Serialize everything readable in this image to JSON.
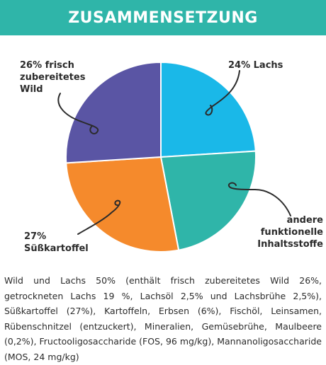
{
  "header": {
    "title": "ZUSAMMENSETZUNG"
  },
  "chart_data": {
    "type": "pie",
    "title": "",
    "slices": [
      {
        "label": "24% Lachs",
        "value": 24,
        "color": "#1ab8e8"
      },
      {
        "label": "andere funktionelle Inhaltsstoffe",
        "value": 23,
        "color": "#2fb5a9"
      },
      {
        "label": "27% Süßkartoffel",
        "value": 27,
        "color": "#f58a2c"
      },
      {
        "label": "26% frisch zubereitetes Wild",
        "value": 26,
        "color": "#5a55a4"
      }
    ],
    "labels": {
      "lachs": "24% Lachs",
      "andere": [
        "andere",
        "funktionelle",
        "Inhaltsstoffe"
      ],
      "kartoffel": [
        "27%",
        "Süßkartoffel"
      ],
      "wild": [
        "26% frisch",
        "zubereitetes",
        "Wild"
      ]
    }
  },
  "description": "Wild und Lachs 50% (enthält frisch zubereitetes Wild 26%, getrockneten Lachs 19 %, Lachsöl 2,5% und Lachsbrühe 2,5%), Süßkartoffel (27%), Kartoffeln, Erbsen (6%), Fischöl, Leinsamen, Rübenschnitzel (entzuckert), Mineralien, Gemüsebrühe, Maulbeere (0,2%), Fructooligosaccharide (FOS, 96 mg/kg), Mannanoligosaccharide (MOS, 24 mg/kg)"
}
